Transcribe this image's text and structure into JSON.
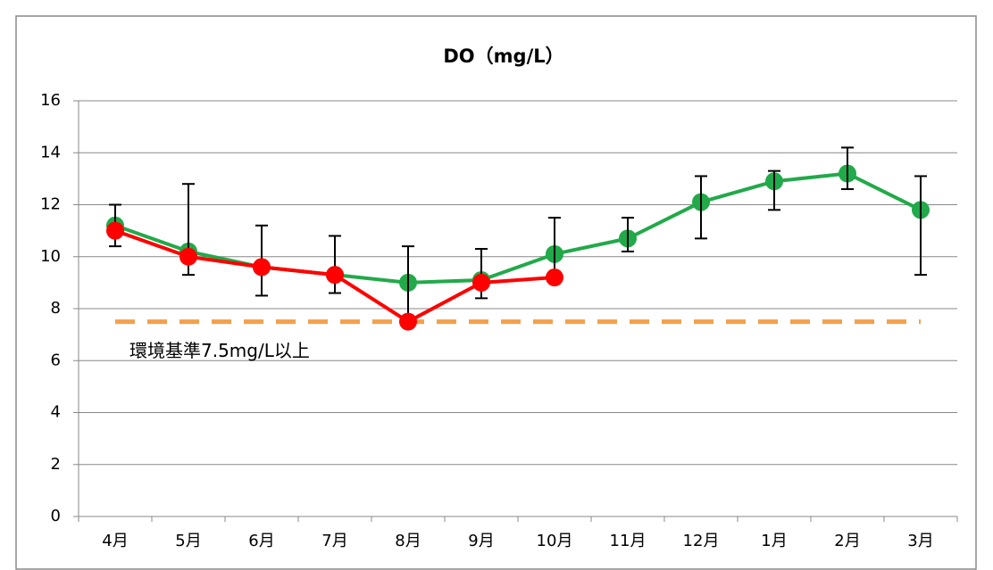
{
  "chart_data": {
    "type": "line",
    "title": "DO（mg/L）",
    "categories": [
      "4月",
      "5月",
      "6月",
      "7月",
      "8月",
      "9月",
      "10月",
      "11月",
      "12月",
      "1月",
      "2月",
      "3月"
    ],
    "series": [
      {
        "color": "#22a94a",
        "values": [
          11.2,
          10.2,
          9.6,
          9.3,
          9.0,
          9.1,
          10.1,
          10.7,
          12.1,
          12.9,
          13.2,
          11.8
        ],
        "upper": [
          12.0,
          12.8,
          11.2,
          10.8,
          10.4,
          10.3,
          11.5,
          11.5,
          13.1,
          13.3,
          14.2,
          13.1
        ],
        "lower": [
          10.4,
          9.3,
          8.5,
          8.6,
          7.5,
          8.4,
          9.2,
          10.2,
          10.7,
          11.8,
          12.6,
          9.3
        ]
      },
      {
        "color": "#ff0000",
        "values": [
          11.0,
          10.0,
          9.6,
          9.3,
          7.5,
          9.0,
          9.2,
          null,
          null,
          null,
          null,
          null
        ]
      }
    ],
    "reference_lines": [
      {
        "value": 7.5,
        "label": "環境基準7.5mg/L以上",
        "color": "#f4a04a"
      }
    ],
    "ylim": [
      0,
      16
    ],
    "yticks": [
      0,
      2,
      4,
      6,
      8,
      10,
      12,
      14,
      16
    ],
    "grid": true
  }
}
